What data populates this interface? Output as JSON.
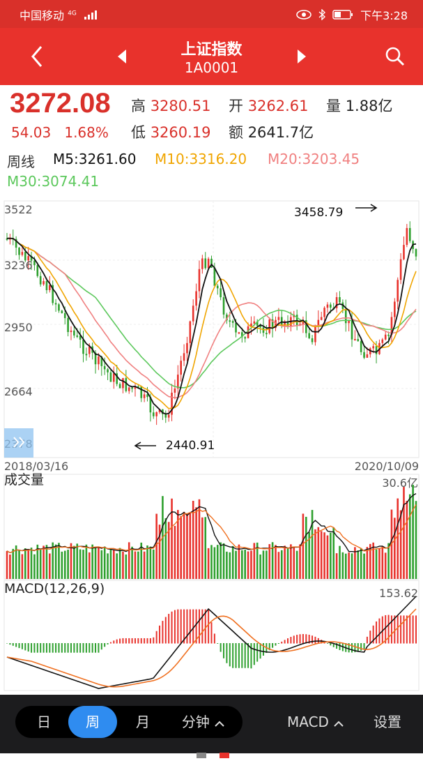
{
  "status": {
    "carrier": "中国移动",
    "network": "4G",
    "time": "下午3:28"
  },
  "header": {
    "title": "上证指数",
    "code": "1A0001"
  },
  "quote": {
    "price": "3272.08",
    "change": "54.03",
    "change_pct": "1.68%",
    "high_label": "高",
    "high": "3280.51",
    "open_label": "开",
    "open": "3262.61",
    "volume_label": "量",
    "volume": "1.88亿",
    "low_label": "低",
    "low": "3260.19",
    "amount_label": "额",
    "amount": "2641.7亿"
  },
  "ma": {
    "period": "周线",
    "m5": "M5:3261.60",
    "m10": "M10:3316.20",
    "m20": "M20:3203.45",
    "m30": "M30:3074.41"
  },
  "colors": {
    "up": "#e8322c",
    "down": "#2ea02e",
    "m5": "#111111",
    "m10": "#f0a500",
    "m20": "#f08080",
    "m30": "#5cc85c",
    "accent": "#2f8cf0"
  },
  "chart_data": [
    {
      "type": "line",
      "title": "",
      "y_ticks": [
        "3522",
        "3236",
        "2950",
        "2664",
        "2378"
      ],
      "ylim": [
        2378,
        3522
      ],
      "x_start": "2018/03/16",
      "x_end": "2020/10/09",
      "high_annotation": "3458.79",
      "low_annotation": "2440.91",
      "grid": true
    },
    {
      "type": "bar",
      "title": "成交量",
      "max_label": "30.6亿"
    },
    {
      "type": "bar",
      "title": "MACD(12,26,9)",
      "max_label": "153.62"
    }
  ],
  "bottom": {
    "tab_day": "日",
    "tab_week": "周",
    "tab_month": "月",
    "tab_minute": "分钟",
    "indicator": "MACD",
    "settings": "设置"
  }
}
